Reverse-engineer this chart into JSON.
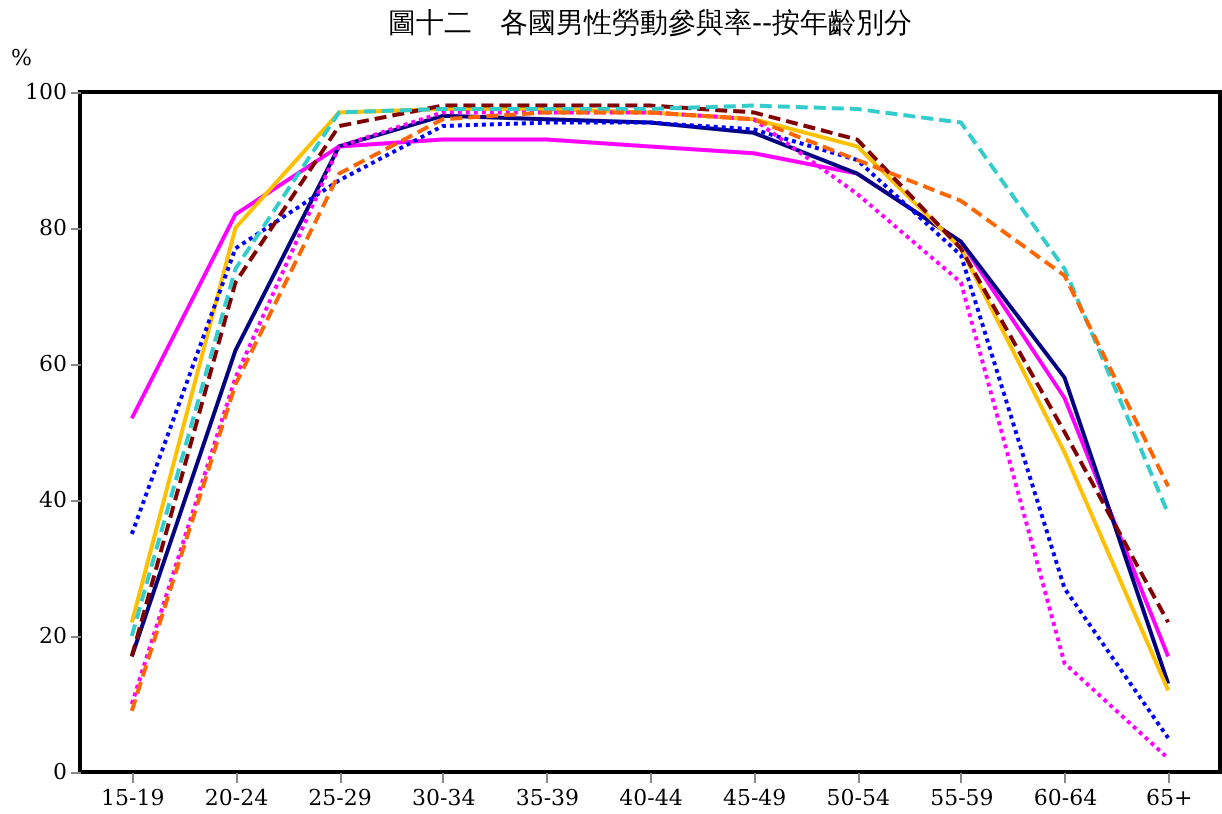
{
  "chart_data": {
    "type": "line",
    "title": "圖十二　各國男性勞動參與率--按年齡別分",
    "ylabel": "%",
    "categories": [
      "15-19",
      "20-24",
      "25-29",
      "30-34",
      "35-39",
      "40-44",
      "45-49",
      "50-54",
      "55-59",
      "60-64",
      "65+"
    ],
    "ylim": [
      0,
      100
    ],
    "yticks": [
      0,
      20,
      40,
      60,
      80,
      100
    ],
    "grid": false,
    "legend": false,
    "marker": "none",
    "series": [
      {
        "color": "#ff00ff",
        "line_style": "solid",
        "values": [
          52,
          82,
          92,
          93,
          93,
          92,
          91,
          88,
          78,
          55,
          17
        ]
      },
      {
        "color": "#000080",
        "line_style": "solid",
        "values": [
          17,
          62,
          92,
          96.5,
          96,
          95.5,
          94,
          88,
          78,
          58,
          13
        ]
      },
      {
        "color": "#ffc000",
        "line_style": "solid",
        "values": [
          22,
          80,
          97,
          97.5,
          97.5,
          97,
          96,
          92,
          77,
          47,
          12
        ]
      },
      {
        "color": "#0000ff",
        "line_style": "dotted",
        "values": [
          35,
          77,
          87,
          95,
          95.5,
          95.5,
          94.5,
          90,
          76,
          27,
          5
        ]
      },
      {
        "color": "#ff00ff",
        "line_style": "dotted",
        "values": [
          10,
          58,
          92,
          97,
          97,
          97,
          96,
          85,
          72,
          16,
          2
        ]
      },
      {
        "color": "#800000",
        "line_style": "dashed",
        "values": [
          17,
          72,
          95,
          98,
          98,
          98,
          97,
          93,
          77,
          50,
          22
        ]
      },
      {
        "color": "#33cccc",
        "line_style": "dashed",
        "values": [
          20,
          74,
          97,
          97.5,
          97.5,
          97.5,
          98,
          97.5,
          95.5,
          74,
          38
        ]
      },
      {
        "color": "#ff6600",
        "line_style": "dashed",
        "values": [
          9,
          57,
          88,
          96,
          97,
          97,
          96,
          90,
          84,
          73,
          42
        ]
      }
    ]
  }
}
